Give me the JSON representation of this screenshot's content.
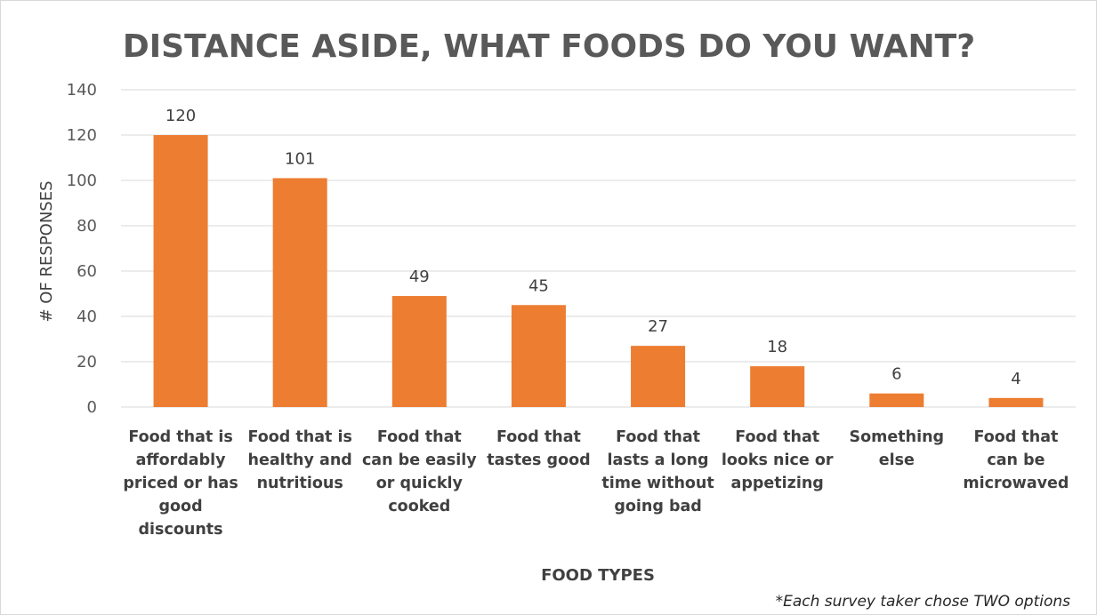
{
  "chart_data": {
    "type": "bar",
    "title": "DISTANCE ASIDE, WHAT FOODS DO YOU WANT?",
    "xlabel": "FOOD TYPES",
    "ylabel": "# OF RESPONSES",
    "ylim": [
      0,
      140
    ],
    "yticks": [
      0,
      20,
      40,
      60,
      80,
      100,
      120,
      140
    ],
    "grid": true,
    "categories": [
      "Food that is affordably priced or has good discounts",
      "Food that is healthy and nutritious",
      "Food that can be easily or quickly cooked",
      "Food that tastes good",
      "Food that lasts a long time without going bad",
      "Food that looks nice or appetizing",
      "Something else",
      "Food that can be microwaved"
    ],
    "category_lines": [
      [
        "Food that is",
        "affordably",
        "priced or has",
        "good",
        "discounts"
      ],
      [
        "Food that is",
        "healthy and",
        "nutritious"
      ],
      [
        "Food that",
        "can be easily",
        "or quickly",
        "cooked"
      ],
      [
        "Food that",
        "tastes good"
      ],
      [
        "Food that",
        "lasts a long",
        "time without",
        "going bad"
      ],
      [
        "Food that",
        "looks nice or",
        "appetizing"
      ],
      [
        "Something",
        "else"
      ],
      [
        "Food that",
        "can be",
        "microwaved"
      ]
    ],
    "values": [
      120,
      101,
      49,
      45,
      27,
      18,
      6,
      4
    ],
    "bar_color": "#ED7D31",
    "grid_color": "#d9d9d9",
    "footnote": "*Each survey taker chose TWO options"
  }
}
